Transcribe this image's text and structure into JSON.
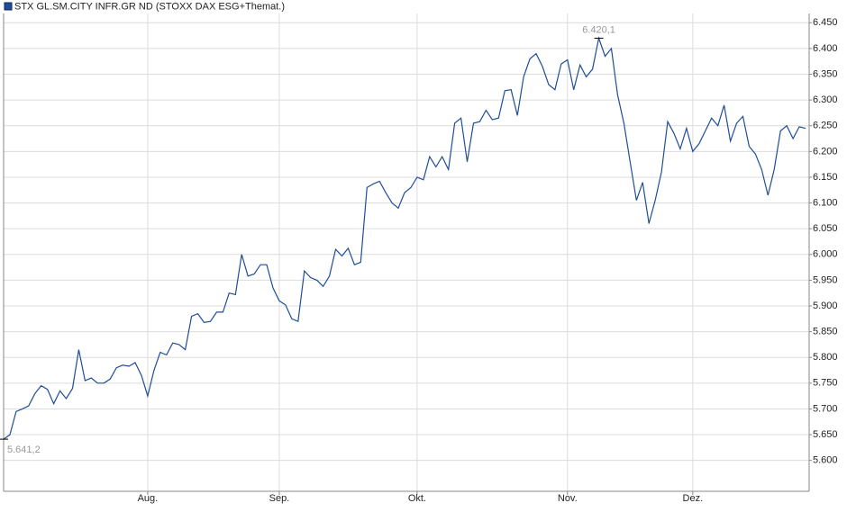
{
  "chart_data": {
    "type": "line",
    "legend": "STX GL.SM.CITY INFR.GR ND (STOXX DAX ESG+Themat.)",
    "color": "#1f4e96",
    "values": [
      5641.2,
      5650,
      5695,
      5700,
      5706,
      5730,
      5745,
      5738,
      5710,
      5735,
      5720,
      5740,
      5815,
      5755,
      5760,
      5750,
      5750,
      5758,
      5780,
      5785,
      5783,
      5790,
      5765,
      5725,
      5775,
      5810,
      5805,
      5828,
      5825,
      5815,
      5880,
      5885,
      5868,
      5870,
      5888,
      5888,
      5925,
      5922,
      6000,
      5958,
      5962,
      5980,
      5980,
      5935,
      5910,
      5902,
      5875,
      5870,
      5968,
      5955,
      5950,
      5938,
      5958,
      6010,
      5997,
      6012,
      5980,
      5985,
      6130,
      6137,
      6142,
      6120,
      6100,
      6090,
      6120,
      6130,
      6150,
      6145,
      6190,
      6170,
      6190,
      6165,
      6255,
      6265,
      6180,
      6255,
      6258,
      6280,
      6262,
      6265,
      6318,
      6320,
      6270,
      6345,
      6380,
      6390,
      6365,
      6330,
      6320,
      6370,
      6378,
      6320,
      6368,
      6345,
      6360,
      6420.1,
      6385,
      6400,
      6310,
      6255,
      6180,
      6105,
      6140,
      6060,
      6105,
      6160,
      6258,
      6235,
      6205,
      6245,
      6200,
      6215,
      6240,
      6265,
      6250,
      6290,
      6220,
      6255,
      6268,
      6210,
      6195,
      6165,
      6115,
      6165,
      6240,
      6250,
      6225,
      6248,
      6245
    ],
    "annotations": [
      {
        "value": 6420.1,
        "label": "6.420,1"
      },
      {
        "value": 5641.2,
        "label": "5.641,2"
      }
    ],
    "xlim": [
      0,
      128
    ],
    "xticks": [
      {
        "value": 23,
        "label": "Aug."
      },
      {
        "value": 44,
        "label": "Sep."
      },
      {
        "value": 66,
        "label": "Okt."
      },
      {
        "value": 90,
        "label": "Nov."
      },
      {
        "value": 110,
        "label": "Dez."
      }
    ],
    "ylim": [
      5540,
      6468
    ],
    "yticks": [
      {
        "value": 5600,
        "label": "5.600"
      },
      {
        "value": 5650,
        "label": "5.650"
      },
      {
        "value": 5700,
        "label": "5.700"
      },
      {
        "value": 5750,
        "label": "5.750"
      },
      {
        "value": 5800,
        "label": "5.800"
      },
      {
        "value": 5850,
        "label": "5.850"
      },
      {
        "value": 5900,
        "label": "5.900"
      },
      {
        "value": 5950,
        "label": "5.950"
      },
      {
        "value": 6000,
        "label": "6.000"
      },
      {
        "value": 6050,
        "label": "6.050"
      },
      {
        "value": 6100,
        "label": "6.100"
      },
      {
        "value": 6150,
        "label": "6.150"
      },
      {
        "value": 6200,
        "label": "6.200"
      },
      {
        "value": 6250,
        "label": "6.250"
      },
      {
        "value": 6300,
        "label": "6.300"
      },
      {
        "value": 6350,
        "label": "6.350"
      },
      {
        "value": 6400,
        "label": "6.400"
      },
      {
        "value": 6450,
        "label": "6.450"
      }
    ],
    "grid": true
  }
}
